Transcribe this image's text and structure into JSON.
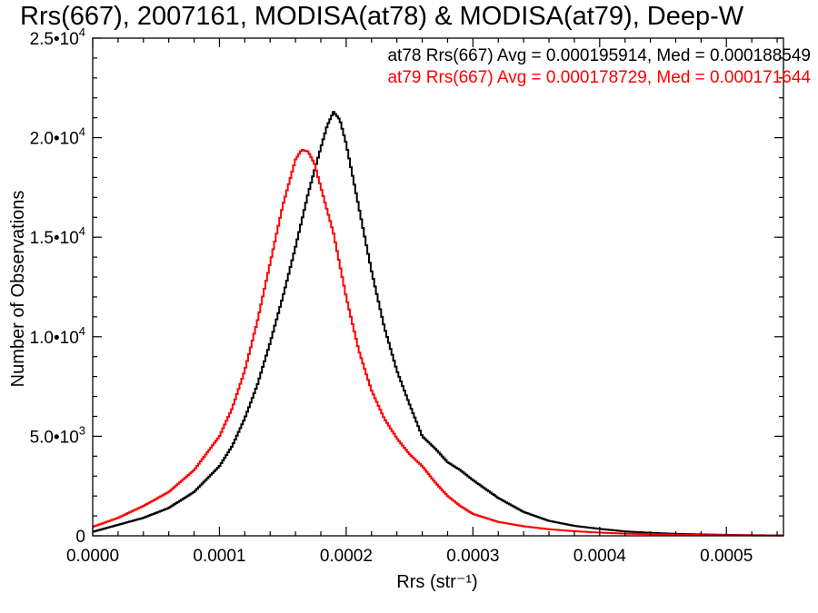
{
  "chart_data": {
    "type": "line",
    "title": "Rrs(667), 2007161, MODISA(at78) & MODISA(at79), Deep-W",
    "xlabel": "Rrs (str⁻¹)",
    "ylabel": "Number of Observations",
    "xlim": [
      0,
      0.000545
    ],
    "ylim": [
      0,
      25000
    ],
    "x_ticks": [
      {
        "value": 0.0,
        "label": "0.0000"
      },
      {
        "value": 0.0001,
        "label": "0.0001"
      },
      {
        "value": 0.0002,
        "label": "0.0002"
      },
      {
        "value": 0.0003,
        "label": "0.0003"
      },
      {
        "value": 0.0004,
        "label": "0.0004"
      },
      {
        "value": 0.0005,
        "label": "0.0005"
      }
    ],
    "y_ticks": [
      {
        "value": 0,
        "mantissa": "0",
        "exponent": ""
      },
      {
        "value": 5000,
        "mantissa": "5.0•10",
        "exponent": "3"
      },
      {
        "value": 10000,
        "mantissa": "1.0•10",
        "exponent": "4"
      },
      {
        "value": 15000,
        "mantissa": "1.5•10",
        "exponent": "4"
      },
      {
        "value": 20000,
        "mantissa": "2.0•10",
        "exponent": "4"
      },
      {
        "value": 25000,
        "mantissa": "2.5•10",
        "exponent": "4"
      }
    ],
    "grid": false,
    "legend_placement": "top-right",
    "annotations": [
      {
        "text": "at78 Rrs(667) Avg = 0.000195914, Med = 0.000188549",
        "color": "#000000"
      },
      {
        "text": "at79 Rrs(667) Avg = 0.000178729, Med = 0.000171644",
        "color": "#ff0000"
      }
    ],
    "series": [
      {
        "color": "#000000",
        "x": [
          0.0,
          2e-05,
          4e-05,
          6e-05,
          8e-05,
          0.0001,
          0.00011,
          0.00012,
          0.00013,
          0.00014,
          0.00015,
          0.00016,
          0.00017,
          0.00018,
          0.000185,
          0.00019,
          0.000195,
          0.0002,
          0.00021,
          0.00022,
          0.00023,
          0.00024,
          0.00025,
          0.00026,
          0.00027,
          0.00028,
          0.00029,
          0.0003,
          0.00032,
          0.00034,
          0.00036,
          0.00038,
          0.0004,
          0.00042,
          0.00044,
          0.00046,
          0.00048,
          0.0005,
          0.00052,
          0.000545
        ],
        "y": [
          200,
          550,
          900,
          1400,
          2200,
          3500,
          4500,
          5900,
          7600,
          9700,
          12000,
          14500,
          17200,
          19500,
          20600,
          21300,
          20900,
          19700,
          16500,
          13300,
          10500,
          8300,
          6600,
          5000,
          4400,
          3700,
          3300,
          2800,
          1900,
          1200,
          750,
          500,
          350,
          220,
          150,
          100,
          70,
          50,
          30,
          20
        ]
      },
      {
        "color": "#ff0000",
        "x": [
          0.0,
          2e-05,
          4e-05,
          6e-05,
          8e-05,
          0.0001,
          0.00011,
          0.00012,
          0.00013,
          0.00014,
          0.00015,
          0.00016,
          0.000165,
          0.00017,
          0.000175,
          0.00018,
          0.00019,
          0.0002,
          0.00021,
          0.00022,
          0.00023,
          0.00024,
          0.00025,
          0.00026,
          0.00027,
          0.00028,
          0.00029,
          0.0003,
          0.00032,
          0.00034,
          0.00036,
          0.00038,
          0.0004,
          0.00042,
          0.00044,
          0.00046,
          0.00048,
          0.0005,
          0.00052,
          0.000545
        ],
        "y": [
          450,
          900,
          1500,
          2200,
          3300,
          5000,
          6400,
          8300,
          10800,
          13700,
          16600,
          18900,
          19400,
          19300,
          18700,
          17500,
          15200,
          12000,
          9300,
          7300,
          5900,
          4900,
          4100,
          3500,
          2700,
          2000,
          1500,
          1100,
          700,
          480,
          330,
          230,
          160,
          110,
          80,
          60,
          40,
          30,
          20,
          15
        ]
      }
    ]
  }
}
